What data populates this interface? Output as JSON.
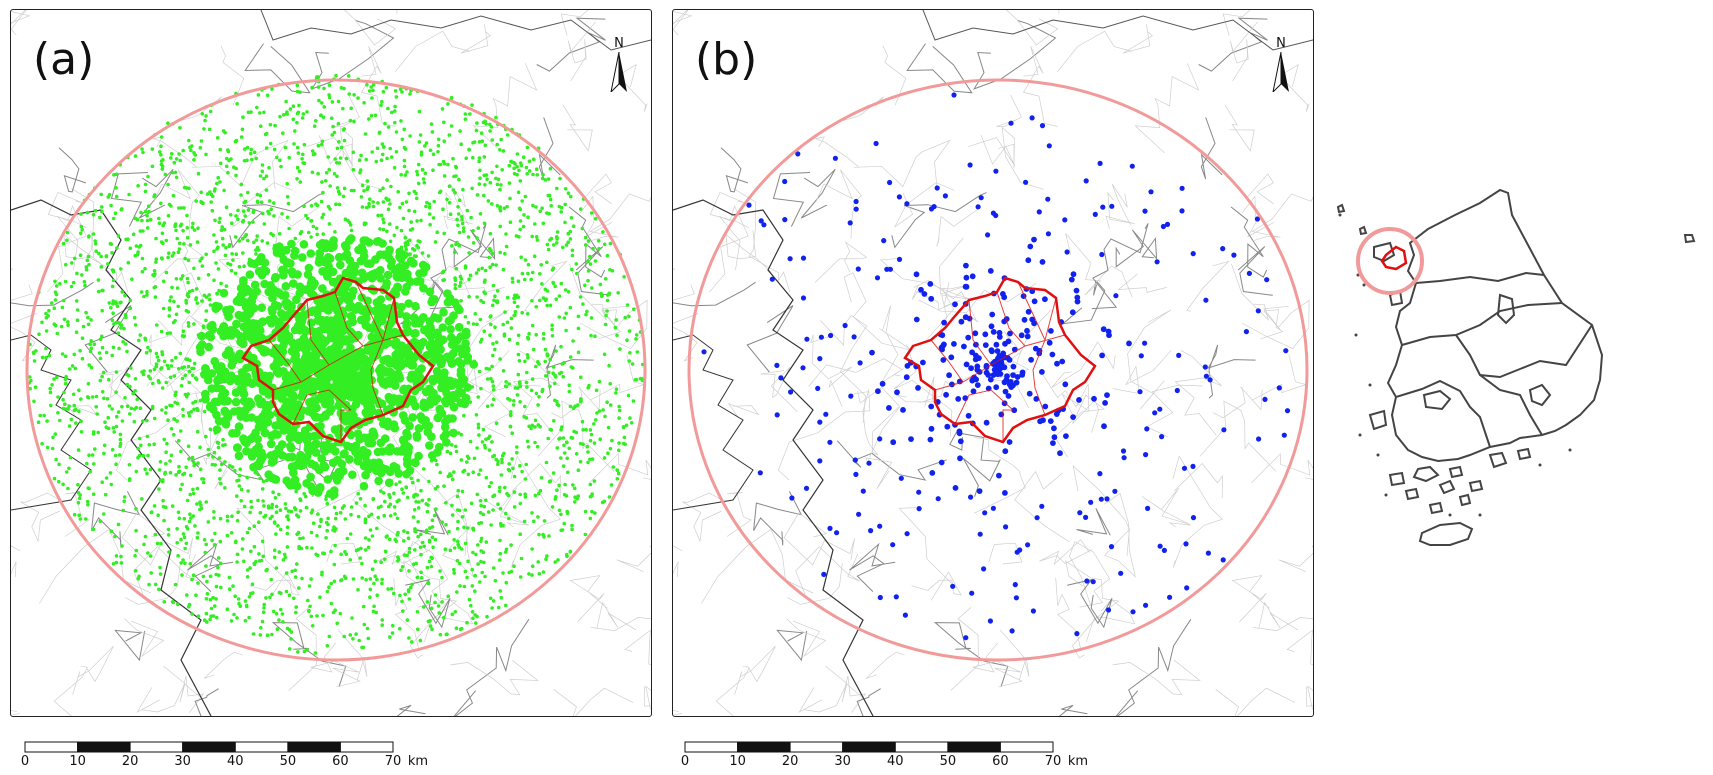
{
  "panels": [
    {
      "label": "(a)",
      "point_color": "#33ee22",
      "north_label": "N"
    },
    {
      "label": "(b)",
      "point_color": "#1122ee",
      "north_label": "N"
    }
  ],
  "scalebar": {
    "ticks": [
      "0",
      "10",
      "20",
      "30",
      "40",
      "50",
      "60",
      "70"
    ],
    "unit": "km"
  },
  "colors": {
    "buffer_circle": "#f29a9a",
    "city_boundary": "#e01010",
    "district_lines": "#bdbdbd",
    "coastline": "#333333",
    "country_outline": "#444444"
  },
  "icons": [
    "north-arrow-icon"
  ]
}
